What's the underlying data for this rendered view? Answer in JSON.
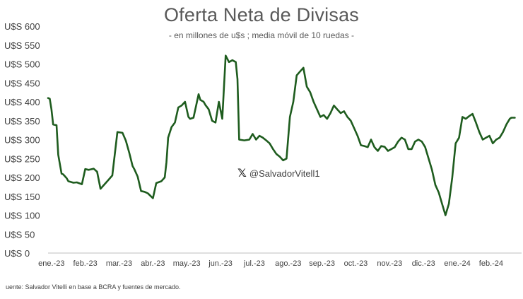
{
  "chart_data": {
    "type": "line",
    "title": "Oferta Neta de Divisas",
    "subtitle": "- en millones de u$s ; media móvil de 10 ruedas -",
    "source": "uente: Salvador Vitelli en base a BCRA y fuentes de mercado.",
    "watermark": "@SalvadorVitell1",
    "watermark_icon": "x-logo-icon",
    "xlabel": "",
    "ylabel": "",
    "ylim": [
      0,
      600
    ],
    "xlim": [
      0,
      14.0
    ],
    "grid": false,
    "legend": "none",
    "line_color": "#1e5c1e",
    "y_ticks": [
      "U$S 0",
      "U$S 50",
      "U$S 100",
      "U$S 150",
      "U$S 200",
      "U$S 250",
      "U$S 300",
      "U$S 350",
      "U$S 400",
      "U$S 450",
      "U$S 500",
      "U$S 550",
      "U$S 600"
    ],
    "y_tick_values": [
      0,
      50,
      100,
      150,
      200,
      250,
      300,
      350,
      400,
      450,
      500,
      550,
      600
    ],
    "x_ticks": [
      "ene.-23",
      "feb.-23",
      "mar.-23",
      "abr.-23",
      "may.-23",
      "jun.-23",
      "jul.-23",
      "ago.-23",
      "sep.-23",
      "oct.-23",
      "nov.-23",
      "dic.-23",
      "ene.-24",
      "feb.-24"
    ],
    "x_tick_values": [
      0.1,
      1.1,
      2.1,
      3.1,
      4.1,
      5.1,
      6.1,
      7.1,
      8.1,
      9.1,
      10.1,
      11.1,
      12.1,
      13.1
    ],
    "series": [
      {
        "x": [
          0.0,
          0.05,
          0.1,
          0.15,
          0.25,
          0.3,
          0.4,
          0.45,
          0.55,
          0.6,
          0.75,
          0.85,
          1.0,
          1.1,
          1.2,
          1.35,
          1.45,
          1.55,
          1.65,
          1.75,
          1.85,
          1.9,
          2.05,
          2.2,
          2.3,
          2.4,
          2.5,
          2.55,
          2.65,
          2.75,
          2.85,
          2.95,
          3.1,
          3.2,
          3.35,
          3.45,
          3.5,
          3.55,
          3.65,
          3.75,
          3.85,
          3.95,
          4.05,
          4.15,
          4.2,
          4.3,
          4.45,
          4.5,
          4.6,
          4.65,
          4.75,
          4.85,
          4.95,
          5.05,
          5.15,
          5.25,
          5.35,
          5.45,
          5.55,
          5.6,
          5.65,
          5.8,
          5.95,
          6.05,
          6.15,
          6.25,
          6.35,
          6.45,
          6.55,
          6.65,
          6.75,
          6.85,
          6.95,
          7.05,
          7.15,
          7.25,
          7.35,
          7.45,
          7.55,
          7.65,
          7.75,
          7.85,
          7.95,
          8.05,
          8.15,
          8.25,
          8.35,
          8.45,
          8.55,
          8.65,
          8.75,
          8.85,
          8.95,
          9.05,
          9.15,
          9.25,
          9.35,
          9.45,
          9.55,
          9.65,
          9.75,
          9.85,
          9.95,
          10.05,
          10.15,
          10.25,
          10.35,
          10.45,
          10.55,
          10.65,
          10.75,
          10.85,
          10.95,
          11.05,
          11.15,
          11.25,
          11.35,
          11.45,
          11.55,
          11.65,
          11.75,
          11.85,
          11.95,
          12.05,
          12.15,
          12.25,
          12.35,
          12.45,
          12.55,
          12.65,
          12.75,
          12.85,
          12.95,
          13.05,
          13.15,
          13.25,
          13.35,
          13.45,
          13.55,
          13.65,
          13.7,
          13.8
        ],
        "values": [
          410,
          408,
          380,
          340,
          338,
          260,
          210,
          208,
          198,
          190,
          186,
          187,
          182,
          222,
          220,
          223,
          215,
          170,
          180,
          190,
          200,
          205,
          320,
          318,
          297,
          265,
          230,
          222,
          202,
          164,
          162,
          158,
          145,
          185,
          190,
          200,
          240,
          305,
          333,
          345,
          385,
          390,
          400,
          360,
          355,
          358,
          420,
          405,
          400,
          392,
          380,
          350,
          345,
          400,
          355,
          522,
          505,
          510,
          505,
          460,
          300,
          298,
          300,
          315,
          300,
          310,
          305,
          298,
          290,
          275,
          262,
          255,
          245,
          250,
          360,
          400,
          470,
          480,
          490,
          440,
          425,
          400,
          380,
          360,
          365,
          355,
          370,
          390,
          380,
          370,
          375,
          360,
          350,
          330,
          310,
          285,
          283,
          280,
          300,
          280,
          270,
          283,
          281,
          270,
          275,
          280,
          295,
          305,
          300,
          275,
          275,
          295,
          300,
          295,
          280,
          250,
          220,
          180,
          160,
          130,
          100,
          130,
          200,
          290,
          305,
          360,
          355,
          362,
          368,
          345,
          320,
          300,
          305,
          310,
          290,
          300,
          305,
          320,
          340,
          355,
          358,
          358
        ]
      }
    ]
  }
}
